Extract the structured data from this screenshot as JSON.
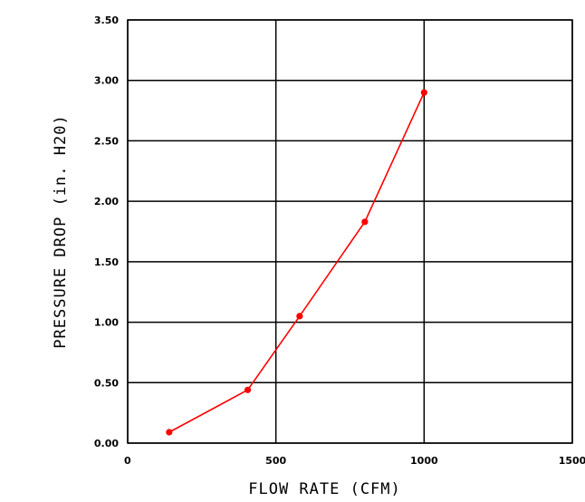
{
  "chart_data": {
    "type": "line",
    "xlabel": "FLOW RATE (CFM)",
    "ylabel": "PRESSURE DROP (in. H20)",
    "xlim": [
      0,
      1500
    ],
    "ylim": [
      0,
      3.5
    ],
    "xticks": [
      0,
      500,
      1000,
      1500
    ],
    "xtick_labels": [
      "0",
      "500",
      "1000",
      "1500"
    ],
    "yticks": [
      0,
      0.5,
      1.0,
      1.5,
      2.0,
      2.5,
      3.0,
      3.5
    ],
    "ytick_labels": [
      "0.00",
      "0.50",
      "1.00",
      "1.50",
      "2.00",
      "2.50",
      "3.00",
      "3.50"
    ],
    "grid": true,
    "series": [
      {
        "color": "#ff0000",
        "x": [
          140,
          405,
          580,
          800,
          1000
        ],
        "y": [
          0.09,
          0.44,
          1.05,
          1.83,
          2.9
        ]
      }
    ]
  }
}
